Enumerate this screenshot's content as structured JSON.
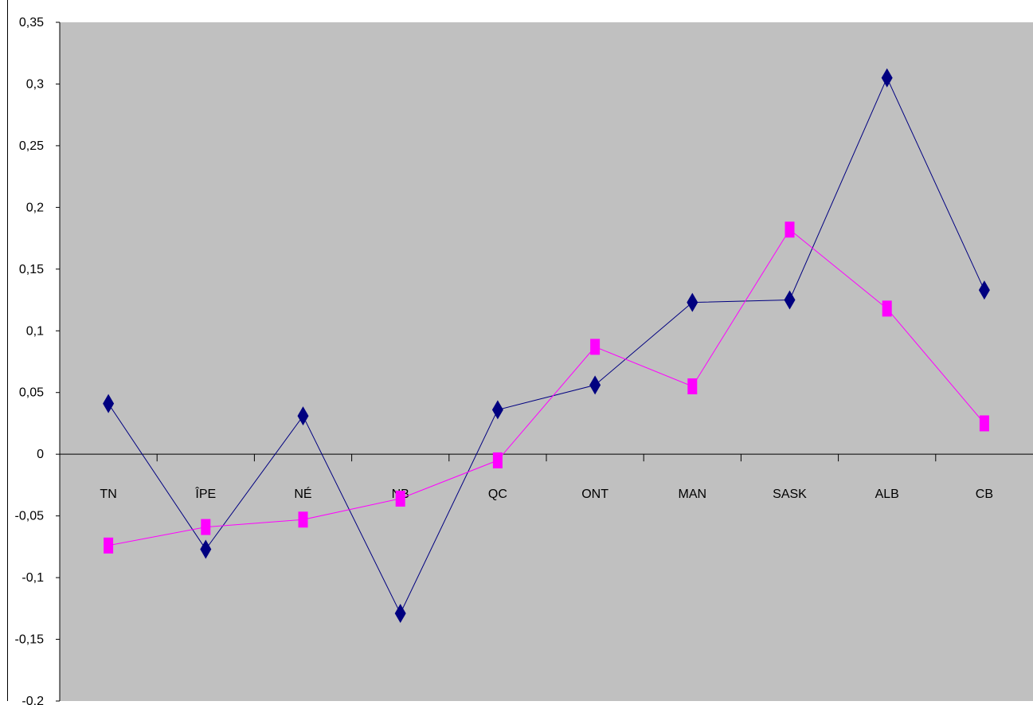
{
  "chart_data": {
    "type": "line",
    "title": "",
    "xlabel": "",
    "ylabel": "",
    "categories": [
      "TN",
      "ÎPE",
      "NÉ",
      "NB",
      "QC",
      "ONT",
      "MAN",
      "SASK",
      "ALB",
      "CB"
    ],
    "ylim": [
      -0.2,
      0.35
    ],
    "yticks": [
      -0.2,
      -0.15,
      -0.1,
      -0.05,
      0,
      0.05,
      0.1,
      0.15,
      0.2,
      0.25,
      0.3,
      0.35
    ],
    "ytick_labels": [
      "-0,2",
      "-0,15",
      "-0,1",
      "-0,05",
      "0",
      "0,05",
      "0,1",
      "0,15",
      "0,2",
      "0,25",
      "0,3",
      "0,35"
    ],
    "grid": false,
    "legend": "none",
    "plot_background": "#c0c0c0",
    "series": [
      {
        "marker": "diamond",
        "color": "#000080",
        "values": [
          0.041,
          -0.077,
          0.031,
          -0.129,
          0.036,
          0.056,
          0.123,
          0.125,
          0.305,
          0.133
        ]
      },
      {
        "marker": "square",
        "color": "#ff00ff",
        "values": [
          -0.074,
          -0.059,
          -0.053,
          -0.036,
          -0.005,
          0.087,
          0.055,
          0.182,
          0.118,
          0.025
        ]
      }
    ]
  }
}
